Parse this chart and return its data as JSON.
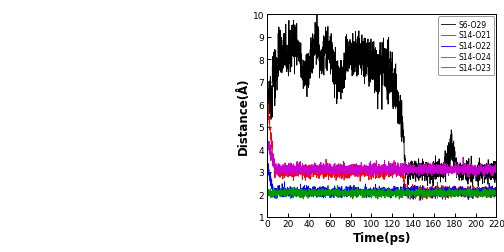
{
  "plot_title": "",
  "xlabel": "Time(ps)",
  "ylabel": "Distance(Å)",
  "xlim": [
    0,
    220
  ],
  "ylim": [
    1,
    10
  ],
  "yticks": [
    1,
    2,
    3,
    4,
    5,
    6,
    7,
    8,
    9,
    10
  ],
  "xticks": [
    0,
    20,
    40,
    60,
    80,
    100,
    120,
    140,
    160,
    180,
    200,
    220
  ],
  "legend_entries": [
    "S6-O29",
    "S14-O21",
    "S14-O22",
    "S14-O24",
    "S14-O23"
  ],
  "line_colors": [
    "#000000",
    "#ff0000",
    "#0000ff",
    "#009900",
    "#cc00cc"
  ],
  "figsize": [
    5.04,
    2.53
  ],
  "dpi": 100,
  "left_bg_color": "#f5f5f5"
}
